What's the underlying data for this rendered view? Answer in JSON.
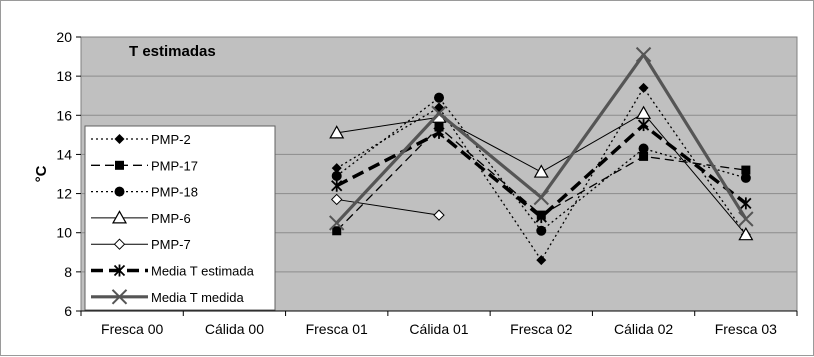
{
  "chart_data": {
    "type": "line",
    "title": "T estimadas",
    "ylabel": "°C",
    "xlabel": "",
    "ylim": [
      6,
      20
    ],
    "yticks": [
      6,
      8,
      10,
      12,
      14,
      16,
      18,
      20
    ],
    "grid": true,
    "legend": "left",
    "plot_background": "#c0c0c0",
    "categories": [
      "Fresca 00",
      "Cálida 00",
      "Fresca 01",
      "Cálida 01",
      "Fresca 02",
      "Cálida 02",
      "Fresca 03"
    ],
    "series": [
      {
        "name": "PMP-2",
        "values": [
          null,
          null,
          13.3,
          16.4,
          8.6,
          17.4,
          9.9
        ],
        "style": {
          "dash": "2,3",
          "width": 1.3,
          "marker": "diamond-filled",
          "color": "#000000"
        }
      },
      {
        "name": "PMP-17",
        "values": [
          null,
          null,
          10.1,
          15.4,
          10.9,
          13.9,
          13.2
        ],
        "style": {
          "dash": "9,5",
          "width": 1.3,
          "marker": "square-filled",
          "color": "#000000"
        }
      },
      {
        "name": "PMP-18",
        "values": [
          null,
          null,
          12.9,
          16.9,
          10.1,
          14.3,
          12.8
        ],
        "style": {
          "dash": "2,3",
          "width": 1.3,
          "marker": "circle-filled",
          "color": "#000000"
        }
      },
      {
        "name": "PMP-6",
        "values": [
          null,
          null,
          15.1,
          15.9,
          13.1,
          16.1,
          9.9
        ],
        "style": {
          "dash": "",
          "width": 1,
          "marker": "triangle-open",
          "color": "#000000"
        }
      },
      {
        "name": "PMP-7",
        "values": [
          null,
          null,
          11.7,
          10.9,
          null,
          null,
          null
        ],
        "style": {
          "dash": "",
          "width": 1,
          "marker": "diamond-open",
          "color": "#000000"
        }
      },
      {
        "name": "Media T estimada",
        "values": [
          null,
          null,
          12.4,
          15.1,
          10.8,
          15.5,
          11.5
        ],
        "style": {
          "dash": "12,6",
          "width": 3.5,
          "marker": "asterisk",
          "color": "#000000"
        }
      },
      {
        "name": "Media T medida",
        "values": [
          null,
          null,
          10.5,
          16.1,
          11.8,
          19.1,
          10.7
        ],
        "style": {
          "dash": "",
          "width": 3.2,
          "marker": "x",
          "color": "#555555"
        }
      }
    ]
  }
}
